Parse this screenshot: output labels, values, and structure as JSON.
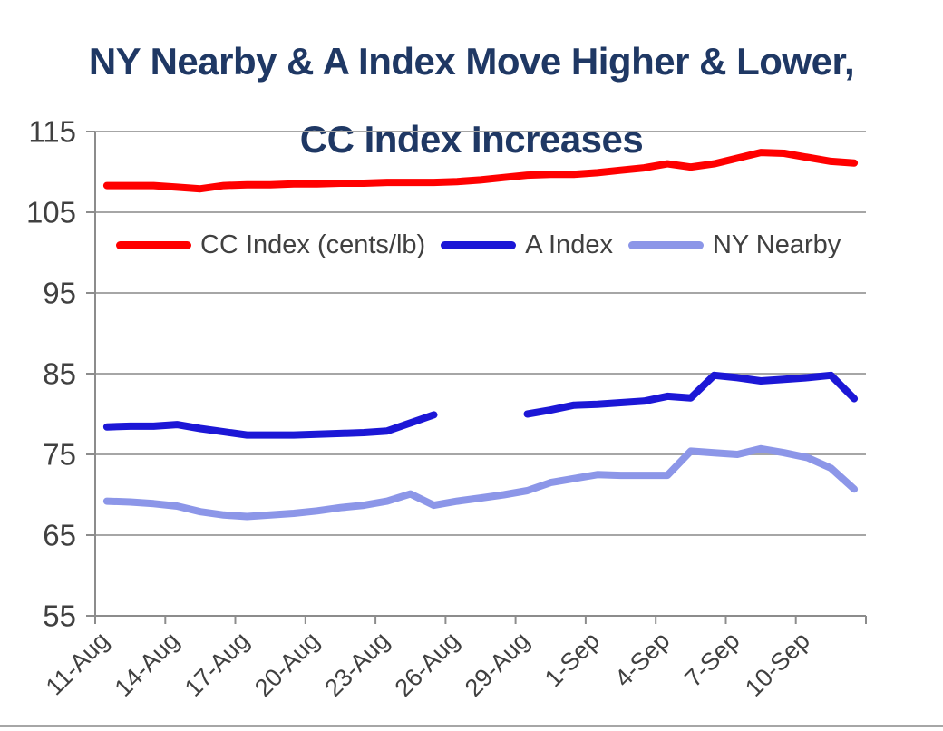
{
  "title": {
    "line1": "NY Nearby & A Index Move Higher & Lower,",
    "line2": "CC Index Increases"
  },
  "colors": {
    "title": "#1F3864",
    "grid": "#A6A6A6",
    "axis": "#8C8C8C",
    "tick_label": "#404040",
    "cc_index": "#FF0000",
    "a_index": "#1C17D6",
    "ny_nearby": "#8C96E8",
    "bottom_rule": "#A6A6A6"
  },
  "chart_data": {
    "type": "line",
    "title": "NY Nearby & A Index Move Higher & Lower, CC Index Increases",
    "grid": "horizontal",
    "legend_position": "inside-top",
    "ylim": [
      55,
      115
    ],
    "y_ticks": [
      115,
      105,
      95,
      85,
      75,
      65,
      55
    ],
    "x_tick_labels": [
      "11-Aug",
      "14-Aug",
      "17-Aug",
      "20-Aug",
      "23-Aug",
      "26-Aug",
      "29-Aug",
      "1-Sep",
      "4-Sep",
      "7-Sep",
      "10-Sep"
    ],
    "x_categories": [
      "11-Aug",
      "12-Aug",
      "13-Aug",
      "14-Aug",
      "15-Aug",
      "16-Aug",
      "17-Aug",
      "18-Aug",
      "19-Aug",
      "20-Aug",
      "21-Aug",
      "22-Aug",
      "23-Aug",
      "24-Aug",
      "25-Aug",
      "26-Aug",
      "27-Aug",
      "28-Aug",
      "29-Aug",
      "30-Aug",
      "31-Aug",
      "1-Sep",
      "2-Sep",
      "3-Sep",
      "4-Sep",
      "5-Sep",
      "6-Sep",
      "7-Sep",
      "8-Sep",
      "9-Sep",
      "10-Sep",
      "11-Sep",
      "12-Sep"
    ],
    "series": [
      {
        "name": "CC Index (cents/lb)",
        "key": "cc-index",
        "color": "#FF0000",
        "values": [
          108.3,
          108.3,
          108.3,
          108.1,
          107.9,
          108.3,
          108.4,
          108.4,
          108.5,
          108.5,
          108.6,
          108.6,
          108.7,
          108.7,
          108.7,
          108.8,
          109.0,
          109.3,
          109.6,
          109.7,
          109.7,
          109.9,
          110.2,
          110.5,
          111.0,
          110.6,
          111.0,
          111.7,
          112.4,
          112.3,
          111.8,
          111.3,
          111.1
        ]
      },
      {
        "name": "A Index",
        "key": "a-index",
        "color": "#1C17D6",
        "values": [
          78.4,
          78.5,
          78.5,
          78.7,
          78.2,
          77.8,
          77.4,
          77.4,
          77.4,
          77.5,
          77.6,
          77.7,
          77.9,
          78.9,
          79.9,
          null,
          null,
          null,
          80.0,
          80.5,
          81.1,
          81.2,
          81.4,
          81.6,
          82.2,
          82.0,
          84.8,
          84.5,
          84.1,
          84.3,
          84.5,
          84.8,
          81.9
        ]
      },
      {
        "name": "NY Nearby",
        "key": "ny-nearby",
        "color": "#8C96E8",
        "values": [
          69.2,
          69.1,
          68.9,
          68.6,
          67.9,
          67.5,
          67.3,
          67.5,
          67.7,
          68.0,
          68.4,
          68.7,
          69.2,
          70.1,
          68.7,
          69.2,
          69.6,
          70.0,
          70.5,
          71.5,
          72.0,
          72.5,
          72.4,
          72.4,
          72.4,
          75.4,
          75.2,
          75.0,
          75.7,
          75.2,
          74.6,
          73.3,
          70.7
        ]
      }
    ]
  }
}
